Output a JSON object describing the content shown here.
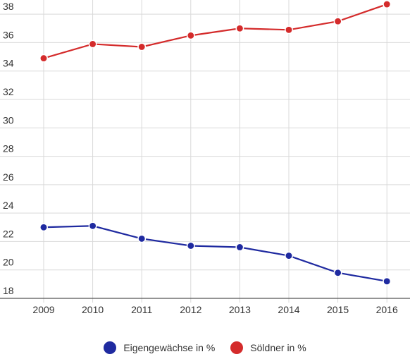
{
  "chart_data": {
    "type": "line",
    "title": "",
    "xlabel": "",
    "ylabel": "",
    "x": [
      "2009",
      "2010",
      "2011",
      "2012",
      "2013",
      "2014",
      "2015",
      "2016"
    ],
    "ylim": [
      18,
      39
    ],
    "y_ticks": [
      18,
      20,
      22,
      24,
      26,
      28,
      30,
      32,
      34,
      36,
      38
    ],
    "grid": true,
    "legend_position": "bottom",
    "series": [
      {
        "name": "Eigengewächse in %",
        "color": "#1f2aa0",
        "values": [
          23.0,
          23.1,
          22.2,
          21.7,
          21.6,
          21.0,
          19.8,
          19.2
        ]
      },
      {
        "name": "Söldner in %",
        "color": "#d42b2b",
        "values": [
          34.9,
          35.9,
          35.7,
          36.5,
          37.0,
          36.9,
          37.5,
          38.7
        ]
      }
    ]
  }
}
